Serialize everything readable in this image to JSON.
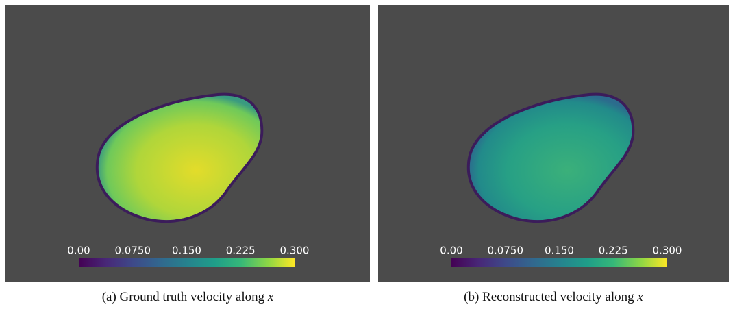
{
  "panels": [
    {
      "colorbar": {
        "lim": [
          0,
          0.3
        ],
        "ticks": [
          {
            "value": 0,
            "label": "0.00"
          },
          {
            "value": 0.075,
            "label": "0.0750"
          },
          {
            "value": 0.15,
            "label": "0.150"
          },
          {
            "value": 0.225,
            "label": "0.225"
          },
          {
            "value": 0.3,
            "label": "0.300"
          }
        ]
      },
      "caption": "(a) Ground truth velocity along",
      "caption_var": "x"
    },
    {
      "colorbar": {
        "lim": [
          0,
          0.3
        ],
        "ticks": [
          {
            "value": 0,
            "label": "0.00"
          },
          {
            "value": 0.075,
            "label": "0.0750"
          },
          {
            "value": 0.15,
            "label": "0.150"
          },
          {
            "value": 0.225,
            "label": "0.225"
          },
          {
            "value": 0.3,
            "label": "0.300"
          }
        ]
      },
      "caption": "(b) Reconstructed velocity along",
      "caption_var": "x"
    }
  ]
}
